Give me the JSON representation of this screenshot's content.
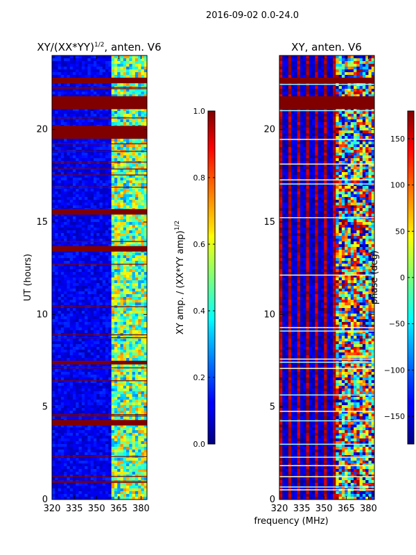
{
  "suptitle": "2016-09-02 0.0-24.0",
  "xlabel": "frequency (MHz)",
  "colors": {
    "band": "#800000",
    "frame": "#000000"
  },
  "chart_data": [
    {
      "type": "heatmap",
      "title_base": "XY/(XX*YY)",
      "title_sup": "1/2",
      "title_suffix": ", anten. V6",
      "ylabel": "UT (hours)",
      "xlim": [
        320,
        384
      ],
      "ylim": [
        0,
        24
      ],
      "xticks": [
        320,
        335,
        350,
        365,
        380
      ],
      "yticks": [
        0,
        5,
        10,
        15,
        20
      ],
      "colorbar": {
        "label_base": "XY amp. / (XX*YY amp)",
        "label_sup": "1/2",
        "range": [
          0.0,
          1.0
        ],
        "ticks": [
          "0.0",
          "0.2",
          "0.4",
          "0.6",
          "0.8",
          "1.0"
        ],
        "tick_values": [
          0.0,
          0.2,
          0.4,
          0.6,
          0.8,
          1.0
        ],
        "colormap": "jet"
      },
      "saturated_bands_hours": [
        [
          22.5,
          22.8
        ],
        [
          21.1,
          21.8
        ],
        [
          19.5,
          20.2
        ],
        [
          15.4,
          15.7
        ],
        [
          13.4,
          13.7
        ],
        [
          7.3,
          7.5
        ],
        [
          4.0,
          4.3
        ]
      ],
      "bright_freq_range_mhz": [
        361,
        384
      ],
      "typical_amplitude_low_freq": 0.1,
      "typical_amplitude_high_freq": 0.5
    },
    {
      "type": "heatmap",
      "title": "XY, anten. V6",
      "ylabel": "phase (deg)",
      "xlim": [
        320,
        384
      ],
      "ylim": [
        0,
        24
      ],
      "xticks": [
        320,
        335,
        350,
        365,
        380
      ],
      "yticks": [
        0,
        5,
        10,
        15,
        20
      ],
      "colorbar": {
        "label": "phase (deg)",
        "range": [
          -180,
          180
        ],
        "ticks": [
          "150",
          "100",
          "50",
          "0",
          "−50",
          "−100",
          "−150"
        ],
        "tick_values": [
          150,
          100,
          50,
          0,
          -50,
          -100,
          -150
        ],
        "colormap": "jet"
      },
      "saturated_bands_hours": [
        [
          21.1,
          21.8
        ],
        [
          22.5,
          22.8
        ]
      ],
      "phase_wrap_note": "alternating +180 / -180 columns"
    }
  ]
}
